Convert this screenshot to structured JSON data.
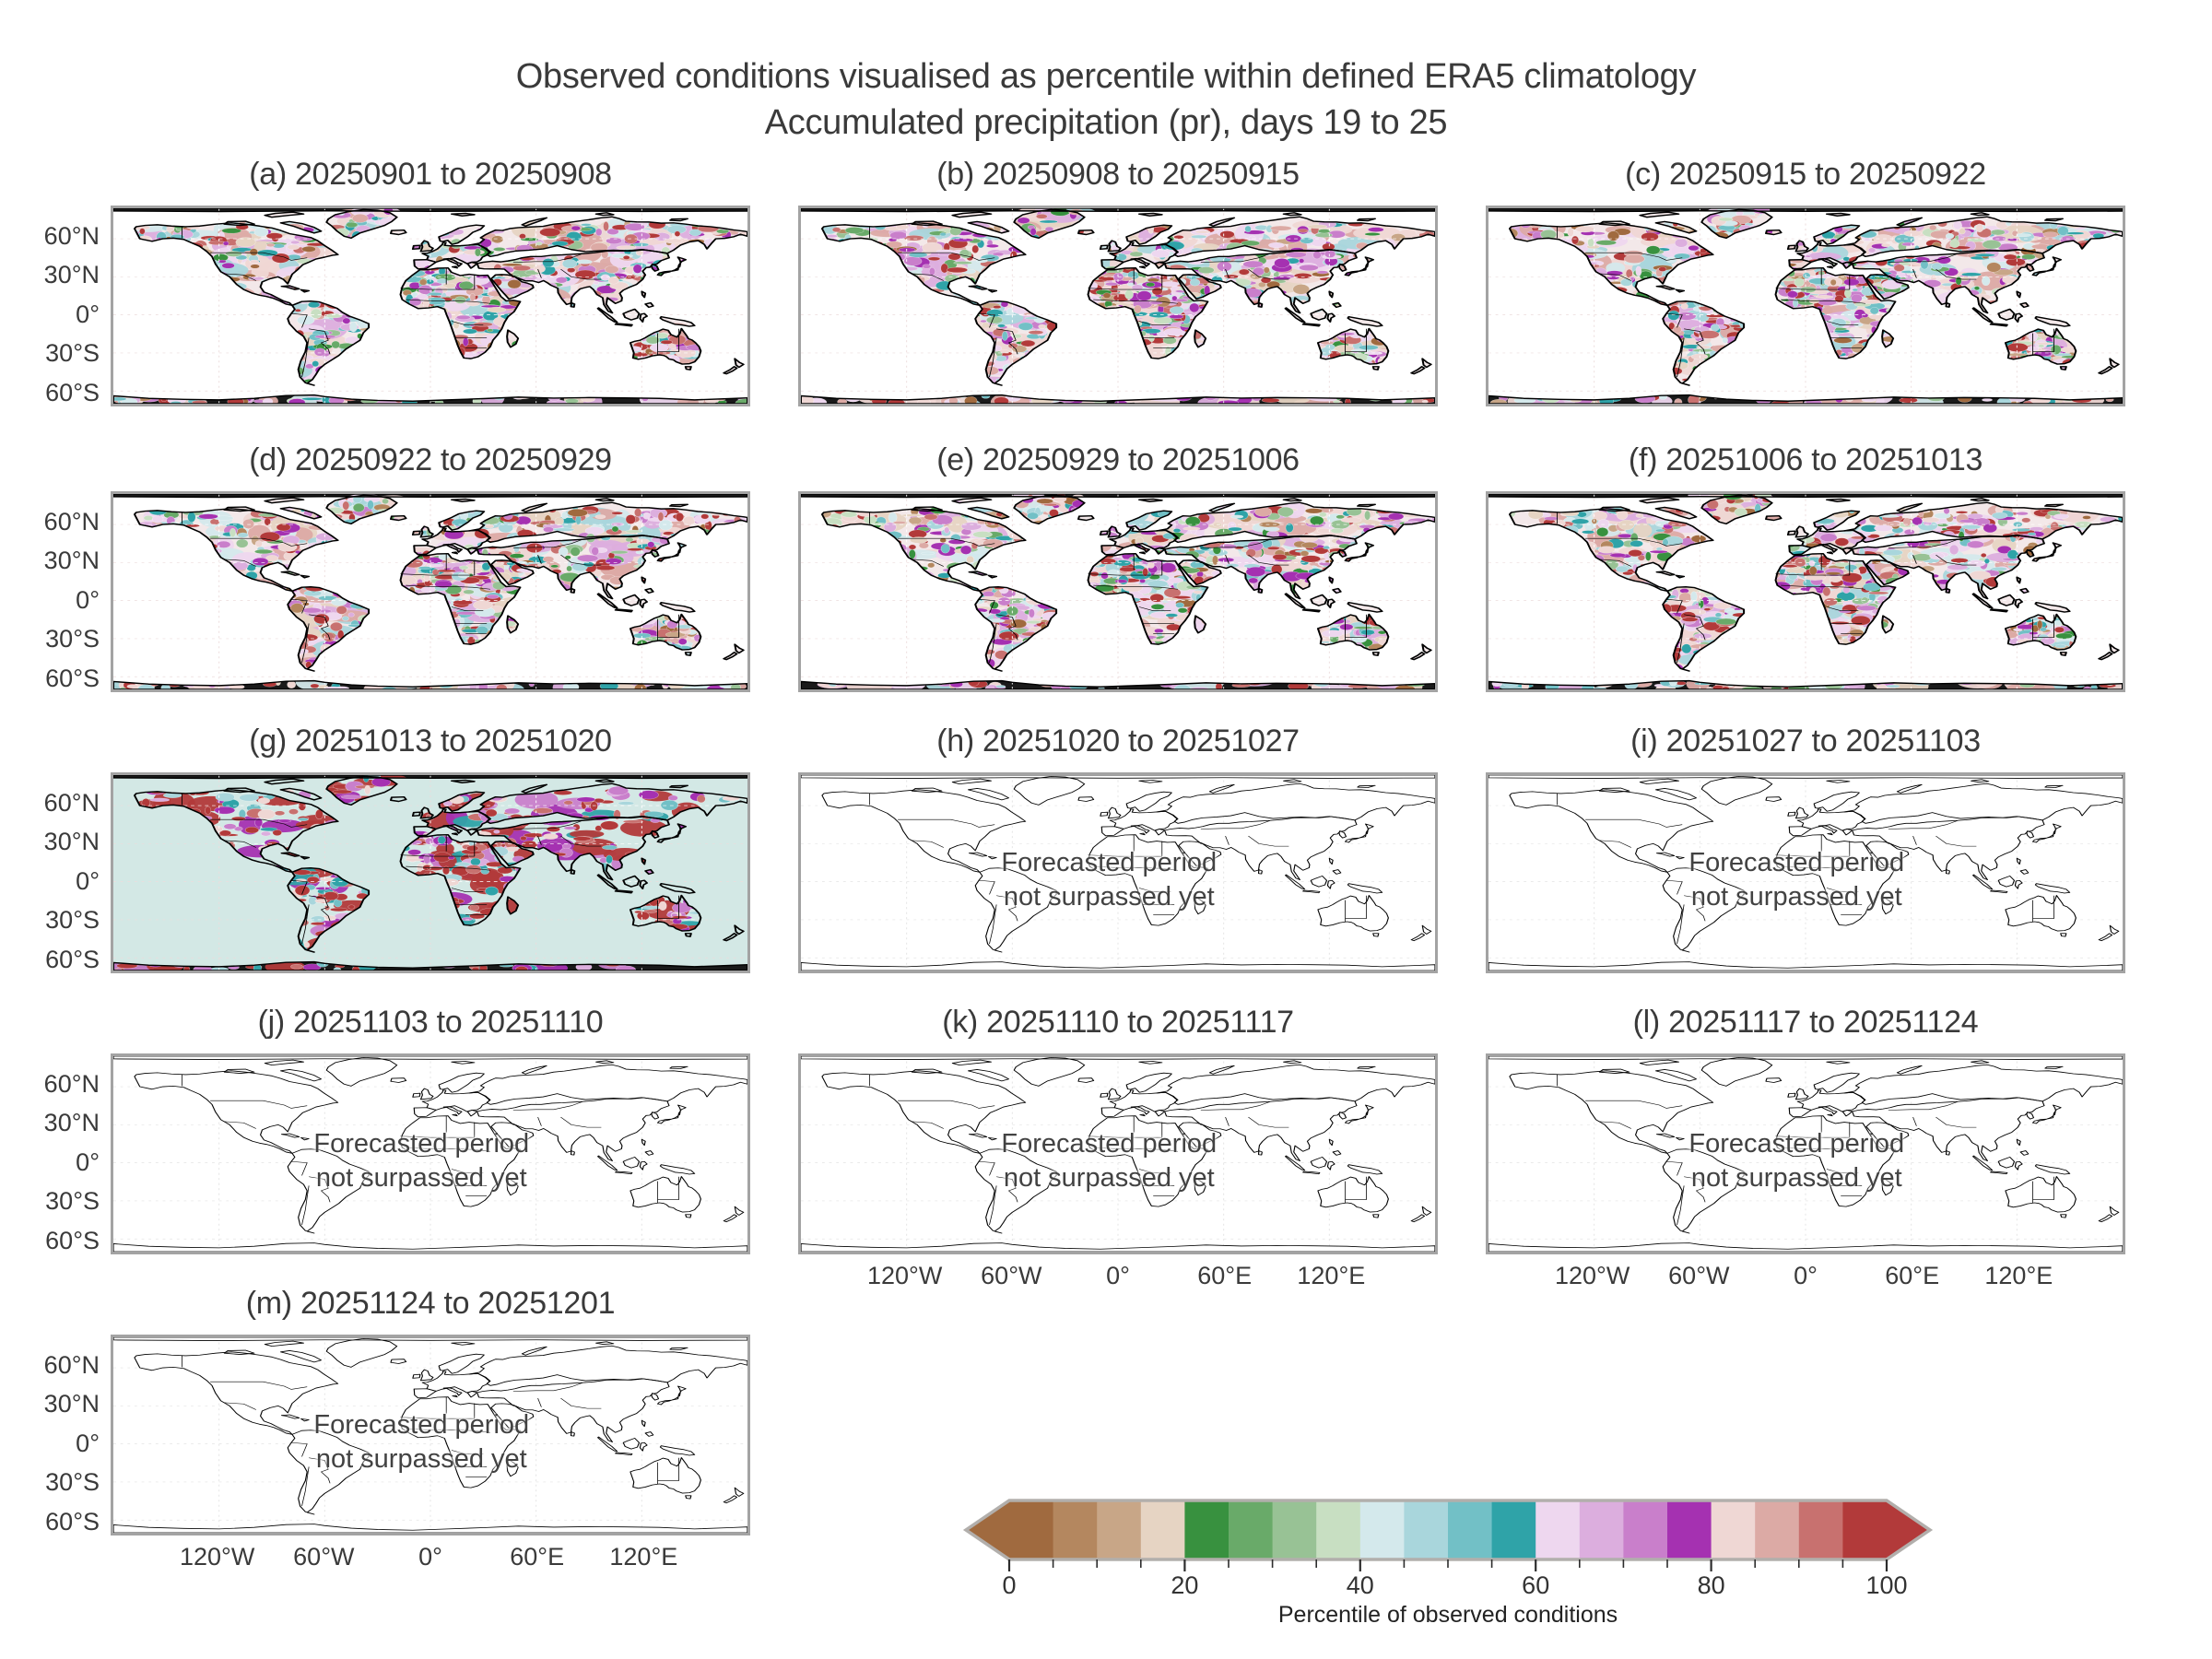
{
  "title": {
    "line1": "Observed conditions visualised as percentile within defined ERA5 climatology",
    "line2": "Accumulated precipitation (pr), days 19 to 25"
  },
  "panels": [
    {
      "key": "a",
      "label": "(a) 20250901 to 20250908",
      "type": "observed"
    },
    {
      "key": "b",
      "label": "(b) 20250908 to 20250915",
      "type": "observed"
    },
    {
      "key": "c",
      "label": "(c) 20250915 to 20250922",
      "type": "observed"
    },
    {
      "key": "d",
      "label": "(d) 20250922 to 20250929",
      "type": "observed"
    },
    {
      "key": "e",
      "label": "(e) 20250929 to 20251006",
      "type": "observed"
    },
    {
      "key": "f",
      "label": "(f) 20251006 to 20251013",
      "type": "observed"
    },
    {
      "key": "g",
      "label": "(g) 20251013 to 20251020",
      "type": "observed-partial"
    },
    {
      "key": "h",
      "label": "(h) 20251020 to 20251027",
      "type": "forecast"
    },
    {
      "key": "i",
      "label": "(i) 20251027 to 20251103",
      "type": "forecast"
    },
    {
      "key": "j",
      "label": "(j) 20251103 to 20251110",
      "type": "forecast"
    },
    {
      "key": "k",
      "label": "(k) 20251110 to 20251117",
      "type": "forecast"
    },
    {
      "key": "l",
      "label": "(l) 20251117 to 20251124",
      "type": "forecast"
    },
    {
      "key": "m",
      "label": "(m) 20251124 to 20251201",
      "type": "forecast"
    }
  ],
  "forecast_note": {
    "line1": "Forecasted period",
    "line2": "not surpassed yet"
  },
  "axes": {
    "lat_ticks": [
      "60°N",
      "30°N",
      "0°",
      "30°S",
      "60°S"
    ],
    "lon_ticks": [
      "120°W",
      "60°W",
      "0°",
      "60°E",
      "120°E"
    ]
  },
  "colorbar": {
    "label": "Percentile of observed conditions",
    "tick_labels": [
      "0",
      "20",
      "40",
      "60",
      "80",
      "100"
    ],
    "segment_colors": [
      "#a06a3f",
      "#b4875f",
      "#c8a687",
      "#e6d4c3",
      "#38913f",
      "#69aa69",
      "#98c295",
      "#c8dfc2",
      "#d4e9ec",
      "#a9d6dc",
      "#72c0c6",
      "#2fa3a8",
      "#eed7ef",
      "#dcaede",
      "#c97fcb",
      "#a531b1",
      "#efd7d4",
      "#dcaaa5",
      "#c8716f",
      "#b23a3a"
    ],
    "border_color": "#b2afac"
  },
  "map_colors": {
    "ocean": "#ffffff",
    "partial_background": "#d3e8e5",
    "land_base": "#f3e8e9",
    "coast": "#000000",
    "polar_fill": "#1a1a1a",
    "grid_faint": "#ecdcdc",
    "grid_land": "#ffffff"
  },
  "chart_data": {
    "type": "heatmap",
    "title": "Observed conditions visualised as percentile within defined ERA5 climatology",
    "subtitle": "Accumulated precipitation (pr), days 19 to 25",
    "projection": "equirectangular world maps, 13 weekly panels",
    "panels": [
      {
        "index": "a",
        "period": "20250901 to 20250908",
        "status": "observed"
      },
      {
        "index": "b",
        "period": "20250908 to 20250915",
        "status": "observed"
      },
      {
        "index": "c",
        "period": "20250915 to 20250922",
        "status": "observed"
      },
      {
        "index": "d",
        "period": "20250922 to 20250929",
        "status": "observed"
      },
      {
        "index": "e",
        "period": "20250929 to 20251006",
        "status": "observed"
      },
      {
        "index": "f",
        "period": "20251006 to 20251013",
        "status": "observed"
      },
      {
        "index": "g",
        "period": "20251013 to 20251020",
        "status": "observed partial coverage"
      },
      {
        "index": "h",
        "period": "20251020 to 20251027",
        "status": "Forecasted period not surpassed yet"
      },
      {
        "index": "i",
        "period": "20251027 to 20251103",
        "status": "Forecasted period not surpassed yet"
      },
      {
        "index": "j",
        "period": "20251103 to 20251110",
        "status": "Forecasted period not surpassed yet"
      },
      {
        "index": "k",
        "period": "20251110 to 20251117",
        "status": "Forecasted period not surpassed yet"
      },
      {
        "index": "l",
        "period": "20251117 to 20251124",
        "status": "Forecasted period not surpassed yet"
      },
      {
        "index": "m",
        "period": "20251124 to 20251201",
        "status": "Forecasted period not surpassed yet"
      }
    ],
    "colorbar": {
      "label": "Percentile of observed conditions",
      "range": [
        0,
        100
      ],
      "major_ticks": [
        0,
        20,
        40,
        60,
        80,
        100
      ],
      "minor_tick_step": 5,
      "n_segments": 20
    },
    "lat_gridlines": [
      "60°N",
      "30°N",
      "0°",
      "30°S",
      "60°S"
    ],
    "lon_gridlines": [
      "120°W",
      "60°W",
      "0°",
      "60°E",
      "120°E"
    ]
  }
}
